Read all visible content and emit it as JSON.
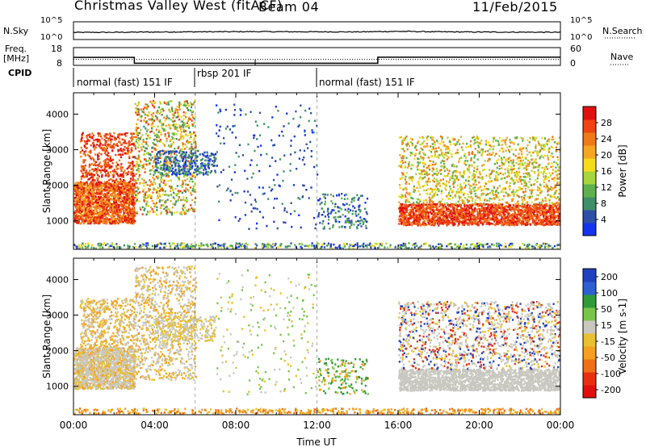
{
  "header": {
    "station": "Christmas Valley West (fitACF)",
    "beam": "Beam 04",
    "date": "11/Feb/2015"
  },
  "left_labels": {
    "nsky": "N.Sky",
    "freq": "Freq.",
    "freq_unit": "[MHz]",
    "cpid": "CPID"
  },
  "right_labels": {
    "nsearch": "N.Search",
    "nave": "Nave"
  },
  "cpid_segments": [
    {
      "label": "normal (fast) 151 IF",
      "start_hour": 0
    },
    {
      "label": "rbsp 201 IF",
      "start_hour": 6
    },
    {
      "label": "normal (fast) 151 IF",
      "start_hour": 12
    }
  ],
  "colors": {
    "power_scale": [
      "#1533ee",
      "#2f4fa6",
      "#3f8f6a",
      "#5fb04e",
      "#a8d43c",
      "#f5dc1a",
      "#f5a623",
      "#f07a18",
      "#ee4412",
      "#e01010"
    ],
    "velocity_scale": [
      "#2040c0",
      "#2e5fd0",
      "#2f9a3a",
      "#79c54a",
      "#c8c8c0",
      "#e8c030",
      "#f5a020",
      "#f07018",
      "#e83010",
      "#e01010"
    ]
  },
  "chart_data": [
    {
      "type": "line",
      "panel": "noise",
      "series": [
        {
          "name": "N.Sky",
          "x": [
            0,
            2,
            4,
            6,
            8,
            9,
            10,
            12,
            14,
            16,
            18,
            20,
            22,
            24
          ],
          "y": [
            100,
            110,
            130,
            150,
            160,
            170,
            160,
            150,
            140,
            200,
            150,
            130,
            120,
            110
          ]
        },
        {
          "name": "N.Search",
          "x": [
            0,
            6,
            12,
            18,
            24
          ],
          "y": [
            100,
            100,
            100,
            100,
            100
          ]
        }
      ],
      "y_ticks": [
        "10^5",
        "10^0"
      ],
      "ylim_log": [
        0,
        5
      ]
    },
    {
      "type": "line",
      "panel": "frequency",
      "series": [
        {
          "name": "Freq",
          "x": [
            0,
            3,
            3,
            15,
            15,
            24
          ],
          "y": [
            12.5,
            12.5,
            9.2,
            9.2,
            12.6,
            12.6
          ]
        },
        {
          "name": "Nave",
          "x": [
            0,
            24
          ],
          "y": [
            20,
            20
          ]
        }
      ],
      "y_ticks_left": [
        "18",
        "8"
      ],
      "y_ticks_right": [
        "60",
        "0"
      ],
      "ylim_left": [
        8,
        18
      ],
      "ylim_right": [
        0,
        60
      ]
    },
    {
      "type": "heatmap",
      "panel": "power",
      "ylabel": "Slant Range [km]",
      "ylim": [
        200,
        4600
      ],
      "y_ticks": [
        1000,
        2000,
        3000,
        4000
      ],
      "xlim": [
        0,
        24
      ],
      "colorbar": {
        "label": "Power [dB]",
        "ticks": [
          4,
          8,
          12,
          16,
          20,
          24,
          28
        ],
        "range": [
          0,
          32
        ]
      }
    },
    {
      "type": "heatmap",
      "panel": "velocity",
      "ylabel": "Slant Range [km]",
      "xlabel": "Time UT",
      "ylim": [
        200,
        4600
      ],
      "y_ticks": [
        1000,
        2000,
        3000,
        4000
      ],
      "x_ticks": [
        "00:00",
        "04:00",
        "08:00",
        "12:00",
        "16:00",
        "20:00",
        "00:00"
      ],
      "xlim": [
        0,
        24
      ],
      "colorbar": {
        "label": "Velocity [m s-1]",
        "ticks": [
          200,
          100,
          50,
          15,
          -15,
          -50,
          -100,
          -200
        ]
      }
    }
  ]
}
